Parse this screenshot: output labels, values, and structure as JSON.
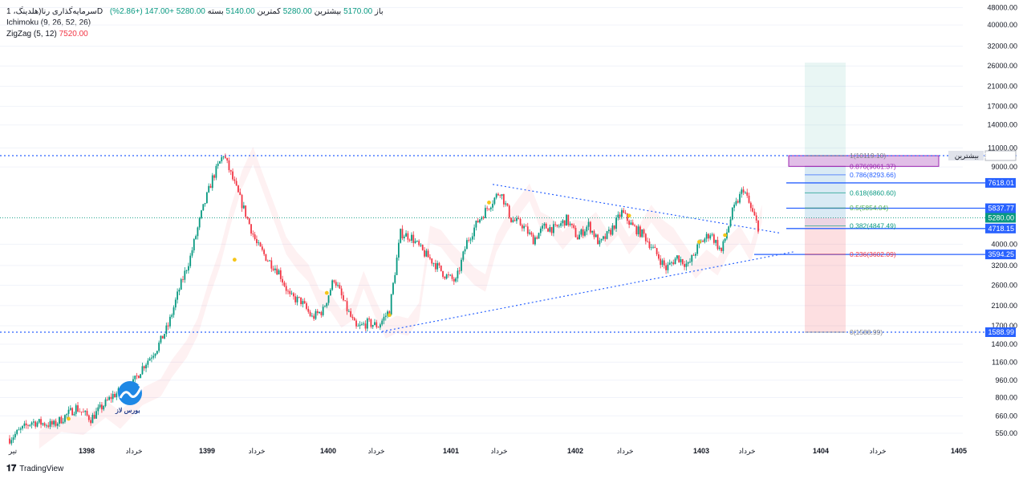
{
  "header": {
    "line1": {
      "symbol": "سرمایه‌گذاری رنا(هلدینگ، 1D",
      "open_label": "باز",
      "open": "5170.00",
      "high_label": "بیشترین",
      "high": "5280.00",
      "low_label": "کمترین",
      "low": "5140.00",
      "close_label": "بسته",
      "close": "5280.00",
      "change": "+147.00 (+2.86%)"
    },
    "ichimoku": "Ichimoku (9, 26, 52, 26)",
    "zigzag_label": "ZigZag (5, 12)",
    "zigzag_value": "7520.00"
  },
  "footer": {
    "brand": "TradingView"
  },
  "watermark": {
    "text": "بورس لاز",
    "icon": "chart-arrow-logo-icon",
    "color": "#1e88e5"
  },
  "colors": {
    "up": "#089981",
    "down": "#f23645",
    "trend": "#2962ff",
    "grid": "#f0f3fa"
  },
  "chart_data": {
    "type": "candlestick",
    "scale": "log",
    "price_axis_ticks": [
      "48000.00",
      "40000.00",
      "32000.00",
      "26000.00",
      "21000.00",
      "17000.00",
      "14000.00",
      "11000.00",
      "9000.00",
      "4000.00",
      "3200.00",
      "2600.00",
      "2100.00",
      "1700.00",
      "1400.00",
      "1160.00",
      "960.00",
      "800.00",
      "660.00",
      "550.00"
    ],
    "time_axis_ticks": [
      {
        "label": "تیر",
        "bold": false
      },
      {
        "label": "1398",
        "bold": true
      },
      {
        "label": "خرداد",
        "bold": false
      },
      {
        "label": "1399",
        "bold": true
      },
      {
        "label": "خرداد",
        "bold": false
      },
      {
        "label": "1400",
        "bold": true
      },
      {
        "label": "خرداد",
        "bold": false
      },
      {
        "label": "1401",
        "bold": true
      },
      {
        "label": "خرداد",
        "bold": false
      },
      {
        "label": "1402",
        "bold": true
      },
      {
        "label": "خرداد",
        "bold": false
      },
      {
        "label": "1403",
        "bold": true
      },
      {
        "label": "خرداد",
        "bold": false
      },
      {
        "label": "1404",
        "bold": true
      },
      {
        "label": "خرداد",
        "bold": false
      },
      {
        "label": "1405",
        "bold": true
      }
    ],
    "price_path": [
      [
        0,
        520
      ],
      [
        6,
        620
      ],
      [
        12,
        600
      ],
      [
        18,
        720
      ],
      [
        22,
        640
      ],
      [
        28,
        820
      ],
      [
        33,
        900
      ],
      [
        36,
        1100
      ],
      [
        40,
        1350
      ],
      [
        43,
        1700
      ],
      [
        46,
        2500
      ],
      [
        49,
        3500
      ],
      [
        52,
        5500
      ],
      [
        55,
        8000
      ],
      [
        58,
        10300
      ],
      [
        61,
        7500
      ],
      [
        64,
        5500
      ],
      [
        67,
        4000
      ],
      [
        70,
        3400
      ],
      [
        73,
        3000
      ],
      [
        76,
        2300
      ],
      [
        79,
        2200
      ],
      [
        82,
        1850
      ],
      [
        85,
        2000
      ],
      [
        88,
        2800
      ],
      [
        91,
        2100
      ],
      [
        94,
        1650
      ],
      [
        97,
        1750
      ],
      [
        100,
        1700
      ],
      [
        103,
        2000
      ],
      [
        106,
        4500
      ],
      [
        109,
        4300
      ],
      [
        112,
        3700
      ],
      [
        115,
        3300
      ],
      [
        118,
        2900
      ],
      [
        121,
        2700
      ],
      [
        124,
        4100
      ],
      [
        127,
        5100
      ],
      [
        130,
        6000
      ],
      [
        133,
        7000
      ],
      [
        136,
        5200
      ],
      [
        139,
        4900
      ],
      [
        142,
        4200
      ],
      [
        145,
        4800
      ],
      [
        148,
        4700
      ],
      [
        151,
        5200
      ],
      [
        154,
        4300
      ],
      [
        157,
        4900
      ],
      [
        160,
        4000
      ],
      [
        163,
        4600
      ],
      [
        166,
        5600
      ],
      [
        169,
        4800
      ],
      [
        172,
        4400
      ],
      [
        175,
        3700
      ],
      [
        178,
        3100
      ],
      [
        181,
        3500
      ],
      [
        184,
        3200
      ],
      [
        187,
        4000
      ],
      [
        190,
        4500
      ],
      [
        193,
        3700
      ],
      [
        196,
        5600
      ],
      [
        199,
        7200
      ],
      [
        201,
        5800
      ],
      [
        203,
        4800
      ]
    ],
    "levels": [
      {
        "label": "بیشترین",
        "value": "10139.00",
        "kind": "high-line"
      },
      {
        "value": "7618.01",
        "kind": "line"
      },
      {
        "value": "5837.77",
        "kind": "line"
      },
      {
        "value": "5280.00",
        "kind": "last"
      },
      {
        "value": "4718.15",
        "kind": "line"
      },
      {
        "value": "3594.25",
        "kind": "line"
      },
      {
        "value": "1588.99",
        "kind": "low-line"
      }
    ],
    "fibonacci": [
      {
        "label": "1(10119.10)",
        "price": 10119.1,
        "color": "#787b86"
      },
      {
        "label": "0.876(9061.37)",
        "price": 9061.37,
        "color": "#9c27b0"
      },
      {
        "label": "0.786(8293.66)",
        "price": 8293.66,
        "color": "#2962ff"
      },
      {
        "label": "0.618(6860.60)",
        "price": 6860.6,
        "color": "#089981"
      },
      {
        "label": "0.5(5854.04)",
        "price": 5854.04,
        "color": "#4caf50"
      },
      {
        "label": "0.382(4847.49)",
        "price": 4847.49,
        "color": "#089981"
      },
      {
        "label": "0.236(3602.09)",
        "price": 3602.09,
        "color": "#f23645"
      },
      {
        "label": "0(1588.99)",
        "price": 1588.99,
        "color": "#787b86"
      }
    ]
  }
}
